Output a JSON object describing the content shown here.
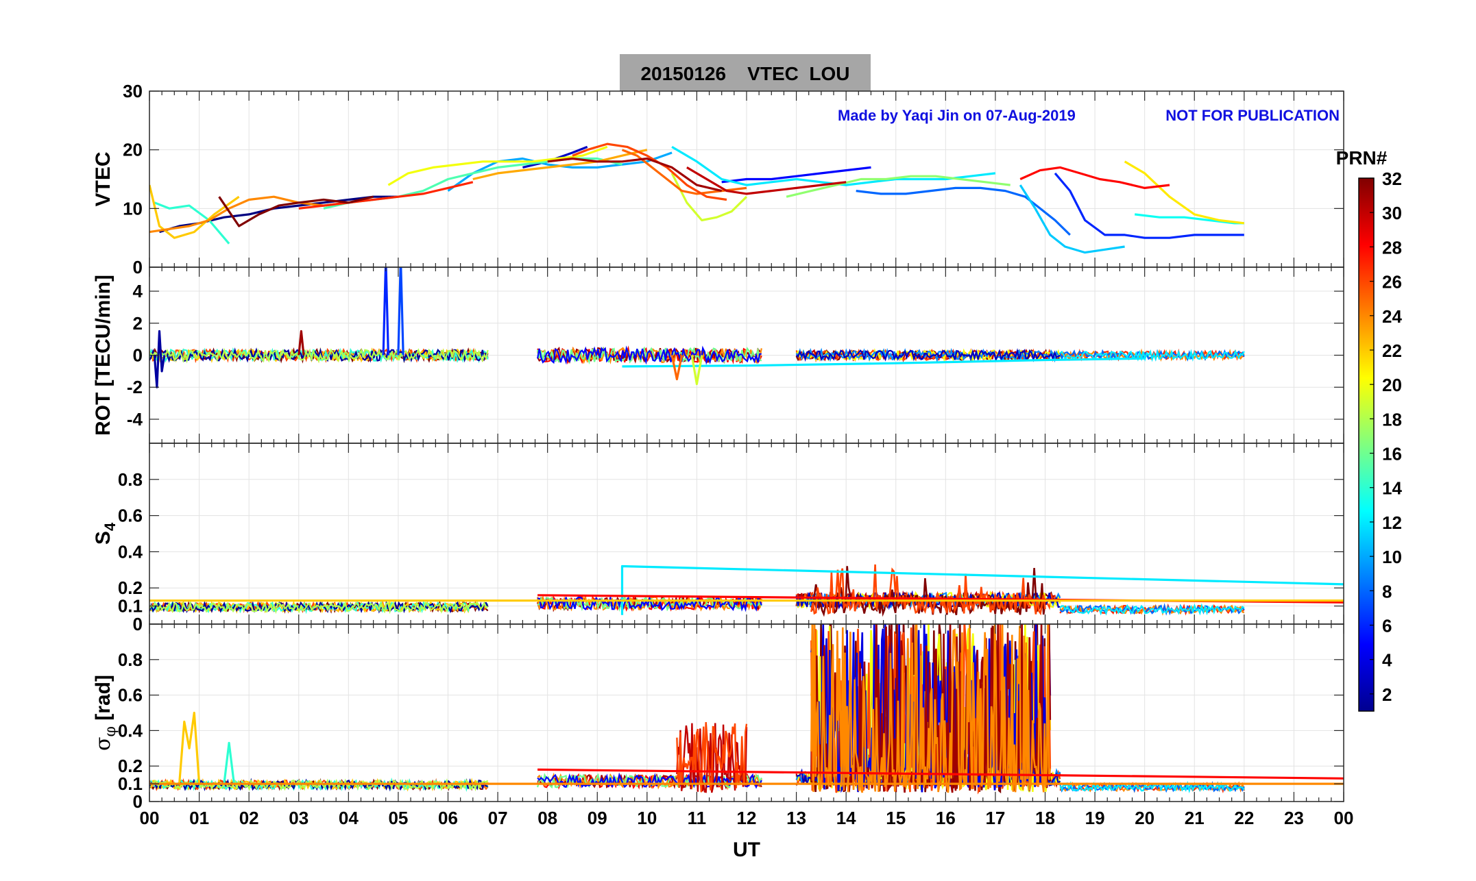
{
  "chart_data": {
    "type": "line",
    "title": "20150126    VTEC  LOU",
    "note_author": "Made by Yaqi Jin on 07-Aug-2019",
    "note_status": "NOT FOR PUBLICATION",
    "xlabel": "UT",
    "xlim": [
      0,
      24
    ],
    "x_ticks": [
      "00",
      "01",
      "02",
      "03",
      "04",
      "05",
      "06",
      "07",
      "08",
      "09",
      "10",
      "11",
      "12",
      "13",
      "14",
      "15",
      "16",
      "17",
      "18",
      "19",
      "20",
      "21",
      "22",
      "23",
      "00"
    ],
    "grid": true,
    "colorbar": {
      "label": "PRN#",
      "range": [
        1,
        32
      ],
      "ticks": [
        "2",
        "4",
        "6",
        "8",
        "10",
        "12",
        "14",
        "16",
        "18",
        "20",
        "22",
        "24",
        "26",
        "28",
        "30",
        "32"
      ],
      "colormap": "jet"
    },
    "panels": [
      {
        "id": "vtec",
        "ylabel": "VTEC",
        "ylim": [
          0,
          30
        ],
        "yticks": [
          "0",
          "10",
          "20",
          "30"
        ],
        "ytick_values": [
          0,
          10,
          20,
          30
        ],
        "series": [
          {
            "prn": 1,
            "x": [
              0.2,
              0.6,
              1.0,
              1.5,
              2.0,
              2.5,
              3.0,
              3.5,
              4.0,
              4.5,
              5.0
            ],
            "y": [
              6,
              7,
              7.5,
              8.5,
              9,
              10,
              10.5,
              11,
              11.5,
              12,
              12
            ]
          },
          {
            "prn": 3,
            "x": [
              7.5,
              8.0,
              8.5,
              8.8
            ],
            "y": [
              17,
              18,
              19.5,
              20.5
            ]
          },
          {
            "prn": 5,
            "x": [
              11.5,
              12.0,
              12.5,
              13.0,
              13.5,
              14.0,
              14.5
            ],
            "y": [
              14.5,
              15,
              15,
              15.5,
              16,
              16.5,
              17
            ]
          },
          {
            "prn": 6,
            "x": [
              18.2,
              18.5,
              18.8,
              19.2,
              19.6,
              20.0,
              20.5,
              21.0,
              21.5,
              22.0
            ],
            "y": [
              16,
              13,
              8,
              5.5,
              5.5,
              5,
              5,
              5.5,
              5.5,
              5.5
            ]
          },
          {
            "prn": 8,
            "x": [
              14.2,
              14.7,
              15.2,
              15.7,
              16.2,
              16.7,
              17.2,
              17.6,
              17.9,
              18.2,
              18.5
            ],
            "y": [
              13,
              12.5,
              12.5,
              13,
              13.5,
              13.5,
              13,
              12,
              10,
              8,
              5.5
            ]
          },
          {
            "prn": 10,
            "x": [
              6.0,
              6.5,
              7.0,
              7.5,
              8.0,
              8.5,
              9.0,
              9.5,
              10.0,
              10.5
            ],
            "y": [
              13,
              16,
              18,
              18.5,
              17.5,
              17,
              17,
              17.5,
              18,
              19.5
            ]
          },
          {
            "prn": 11,
            "x": [
              17.5,
              17.8,
              18.1,
              18.4,
              18.8,
              19.2,
              19.6
            ],
            "y": [
              14,
              10,
              5.5,
              3.5,
              2.5,
              3,
              3.5
            ]
          },
          {
            "prn": 12,
            "x": [
              10.5,
              11.0,
              11.5,
              12.0,
              12.5,
              13.0,
              13.5,
              14.0,
              14.5,
              15.0,
              15.5,
              16.0,
              16.5,
              17.0
            ],
            "y": [
              20.5,
              18,
              15,
              14,
              14.5,
              15,
              14.5,
              14,
              14.5,
              15,
              15,
              15,
              15.5,
              16
            ]
          },
          {
            "prn": 13,
            "x": [
              19.8,
              20.3,
              20.8,
              21.3,
              21.8,
              22.0
            ],
            "y": [
              9,
              8.5,
              8.5,
              8,
              7.5,
              7.5
            ]
          },
          {
            "prn": 14,
            "x": [
              0.1,
              0.4,
              0.8,
              1.2,
              1.6
            ],
            "y": [
              11,
              10,
              10.5,
              8,
              4
            ]
          },
          {
            "prn": 15,
            "x": [
              3.5,
              4.0,
              4.5,
              5.0,
              5.5,
              6.0,
              6.5,
              7.0,
              7.5,
              8.0,
              8.5,
              9.0,
              9.5
            ],
            "y": [
              10,
              11,
              11.5,
              12,
              13,
              15,
              16,
              17,
              17.5,
              18,
              18.5,
              18.5,
              17.5
            ]
          },
          {
            "prn": 17,
            "x": [
              12.8,
              13.3,
              13.8,
              14.3,
              14.8,
              15.3,
              15.8,
              16.3,
              16.8,
              17.3
            ],
            "y": [
              12,
              13,
              14,
              15,
              15,
              15.5,
              15.5,
              15,
              14.5,
              14
            ]
          },
          {
            "prn": 19,
            "x": [
              10.5,
              10.8,
              11.1,
              11.4,
              11.7,
              12.0
            ],
            "y": [
              16,
              11,
              8,
              8.5,
              9.5,
              12
            ]
          },
          {
            "prn": 20,
            "x": [
              4.8,
              5.2,
              5.7,
              6.2,
              6.7,
              7.2,
              7.7,
              8.2,
              8.7,
              9.2
            ],
            "y": [
              14,
              16,
              17,
              17.5,
              18,
              18,
              18,
              18.5,
              19,
              20.5
            ]
          },
          {
            "prn": 21,
            "x": [
              19.6,
              20.0,
              20.5,
              21.0,
              21.5,
              22.0
            ],
            "y": [
              18,
              16,
              12,
              9,
              8,
              7.5
            ]
          },
          {
            "prn": 22,
            "x": [
              0.0,
              0.2,
              0.5,
              0.9,
              1.3,
              1.8
            ],
            "y": [
              14,
              7,
              5,
              6,
              9,
              12
            ]
          },
          {
            "prn": 23,
            "x": [
              6.5,
              7.0,
              7.5,
              8.0,
              8.5,
              9.0,
              9.5,
              10.0
            ],
            "y": [
              15,
              16,
              16.5,
              17,
              17.5,
              18,
              19,
              20
            ]
          },
          {
            "prn": 24,
            "x": [
              0.0,
              0.4,
              0.8,
              1.2,
              1.6,
              2.0,
              2.5,
              3.0,
              3.5,
              4.0
            ],
            "y": [
              6,
              6.5,
              7,
              8,
              10,
              11.5,
              12,
              11,
              10.5,
              11
            ]
          },
          {
            "prn": 25,
            "x": [
              9.5,
              9.8,
              10.1,
              10.4,
              10.7,
              11.0,
              11.5,
              12.0
            ],
            "y": [
              20,
              19,
              17,
              15,
              13,
              12.5,
              13,
              13.5
            ]
          },
          {
            "prn": 26,
            "x": [
              8.5,
              8.8,
              9.2,
              9.6,
              10.0,
              10.4,
              10.8,
              11.2,
              11.6
            ],
            "y": [
              19,
              20,
              21,
              20.5,
              19,
              17,
              14,
              12,
              11.5
            ]
          },
          {
            "prn": 27,
            "x": [
              3.0,
              3.5,
              4.0,
              4.5,
              5.0,
              5.5,
              6.0,
              6.5
            ],
            "y": [
              10,
              10.5,
              11,
              11.5,
              12,
              12.5,
              13.5,
              14.5
            ]
          },
          {
            "prn": 28,
            "x": [
              17.5,
              17.9,
              18.3,
              18.7,
              19.1,
              19.5,
              20.0,
              20.5
            ],
            "y": [
              15,
              16.5,
              17,
              16,
              15,
              14.5,
              13.5,
              14
            ]
          },
          {
            "prn": 30,
            "x": [
              10.8,
              11.2,
              11.6,
              12.0,
              12.5,
              13.0,
              13.5,
              14.0
            ],
            "y": [
              17,
              15,
              13,
              12.5,
              13,
              13.5,
              14,
              14.5
            ]
          },
          {
            "prn": 31,
            "x": [
              8.0,
              8.5,
              9.0,
              9.5,
              10.0,
              10.5,
              11.0,
              11.5
            ],
            "y": [
              18,
              18.5,
              18,
              18,
              18.5,
              17,
              14,
              13
            ]
          },
          {
            "prn": 32,
            "x": [
              1.4,
              1.8,
              2.2,
              2.6,
              3.0,
              3.5,
              4.0,
              4.5
            ],
            "y": [
              12,
              7,
              9,
              10.5,
              11,
              11.5,
              11,
              12
            ]
          }
        ]
      },
      {
        "id": "rot",
        "ylabel": "ROT [TECU/min]",
        "ylim": [
          -5.5,
          5.5
        ],
        "yticks": [
          "-4",
          "-2",
          "0",
          "2",
          "4"
        ],
        "ytick_values": [
          -4,
          -2,
          0,
          2,
          4
        ],
        "series": [
          {
            "prn": 6,
            "x": [
              4.7,
              4.75,
              4.8
            ],
            "y": [
              0,
              6,
              0
            ]
          },
          {
            "prn": 7,
            "x": [
              5.0,
              5.05,
              5.1
            ],
            "y": [
              0,
              6,
              0
            ]
          },
          {
            "prn": 2,
            "x": [
              0.1,
              0.15,
              0.2,
              0.25,
              0.3
            ],
            "y": [
              0,
              -2,
              1.5,
              -1,
              0
            ]
          },
          {
            "prn": 12,
            "x": [
              9.5,
              12,
              15,
              18,
              20
            ],
            "y": [
              -0.7,
              -0.65,
              -0.5,
              -0.3,
              -0.2
            ]
          },
          {
            "prn": 31,
            "x": [
              3.0,
              3.05,
              3.1
            ],
            "y": [
              0,
              1.5,
              0
            ]
          },
          {
            "prn": 25,
            "x": [
              10.5,
              10.6,
              10.7
            ],
            "y": [
              0,
              -1.5,
              0
            ]
          },
          {
            "prn": 19,
            "x": [
              10.9,
              11.0,
              11.1
            ],
            "y": [
              0,
              -1.8,
              0
            ]
          }
        ]
      },
      {
        "id": "s4",
        "ylabel": "S4",
        "ylim": [
          0,
          1.0
        ],
        "yticks": [
          "0",
          "0.1",
          "0.2",
          "0.4",
          "0.6",
          "0.8"
        ],
        "ytick_values": [
          0,
          0.1,
          0.2,
          0.4,
          0.6,
          0.8
        ],
        "series": [
          {
            "prn": 12,
            "x": [
              9.5,
              9.5,
              24
            ],
            "y": [
              0.05,
              0.32,
              0.22
            ]
          },
          {
            "prn": 28,
            "x": [
              7.8,
              24
            ],
            "y": [
              0.16,
              0.12
            ]
          },
          {
            "prn": 22,
            "x": [
              0,
              24
            ],
            "y": [
              0.13,
              0.13
            ]
          }
        ]
      },
      {
        "id": "sigphi",
        "ylabel": "σ_φ [rad]",
        "ylim": [
          0,
          1.0
        ],
        "yticks": [
          "0",
          "0.1",
          "0.2",
          "0.4",
          "0.6",
          "0.8"
        ],
        "ytick_values": [
          0,
          0.1,
          0.2,
          0.4,
          0.6,
          0.8
        ],
        "series": [
          {
            "prn": 22,
            "x": [
              0.6,
              0.7,
              0.8,
              0.9,
              1.0
            ],
            "y": [
              0.1,
              0.45,
              0.3,
              0.5,
              0.1
            ]
          },
          {
            "prn": 14,
            "x": [
              1.5,
              1.6,
              1.7
            ],
            "y": [
              0.1,
              0.33,
              0.1
            ]
          },
          {
            "prn": 28,
            "x": [
              7.8,
              24
            ],
            "y": [
              0.18,
              0.13
            ]
          },
          {
            "prn": 24,
            "x": [
              0,
              24
            ],
            "y": [
              0.1,
              0.1
            ]
          }
        ]
      }
    ]
  }
}
